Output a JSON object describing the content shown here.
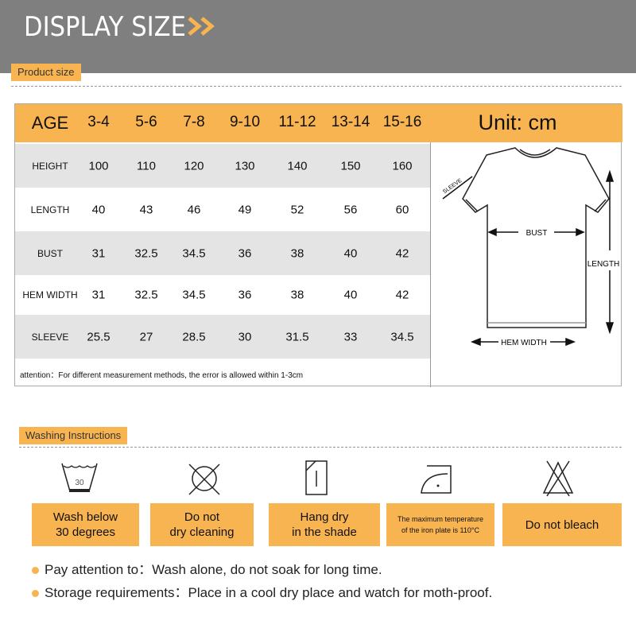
{
  "header": {
    "title": "DISPLAY SIZE",
    "icon": "double-chevron-right-icon",
    "accent": "#f8b451"
  },
  "product_size": {
    "tag": "Product size"
  },
  "size_table": {
    "age_label": "AGE",
    "ages": [
      "3-4",
      "5-6",
      "7-8",
      "9-10",
      "11-12",
      "13-14",
      "15-16"
    ],
    "unit": "Unit: cm",
    "rows": [
      {
        "label": "HEIGHT",
        "values": [
          "100",
          "110",
          "120",
          "130",
          "140",
          "150",
          "160"
        ]
      },
      {
        "label": "LENGTH",
        "values": [
          "40",
          "43",
          "46",
          "49",
          "52",
          "56",
          "60"
        ]
      },
      {
        "label": "BUST",
        "values": [
          "31",
          "32.5",
          "34.5",
          "36",
          "38",
          "40",
          "42"
        ]
      },
      {
        "label": "HEM WIDTH",
        "values": [
          "31",
          "32.5",
          "34.5",
          "36",
          "38",
          "40",
          "42"
        ]
      },
      {
        "label": "SLEEVE",
        "values": [
          "25.5",
          "27",
          "28.5",
          "30",
          "31.5",
          "33",
          "34.5"
        ]
      }
    ],
    "note": "attention：For different measurement methods, the error is allowed within 1-3cm"
  },
  "diagram": {
    "sleeve": "SLEEVE",
    "bust": "BUST",
    "length": "LENGTH",
    "hem_width": "HEM WIDTH"
  },
  "washing": {
    "tag": "Washing Instructions",
    "items": [
      {
        "icon": "wash-30-icon",
        "label1": "Wash below",
        "label2": "30 degrees",
        "temp": "30"
      },
      {
        "icon": "no-dry-clean-icon",
        "label1": "Do not",
        "label2": "dry cleaning"
      },
      {
        "icon": "hang-dry-shade-icon",
        "label1": "Hang dry",
        "label2": "in the shade"
      },
      {
        "icon": "iron-low-icon",
        "label1": "The maximum temperature",
        "label2": "of the iron plate is 110°C"
      },
      {
        "icon": "no-bleach-icon",
        "label1": "Do not bleach"
      }
    ]
  },
  "notes": [
    {
      "label": "Pay attention to：",
      "text": "Wash alone, do not soak for long time."
    },
    {
      "label": "Storage requirements：",
      "text": "Place in a cool dry place and watch for moth-proof."
    }
  ]
}
